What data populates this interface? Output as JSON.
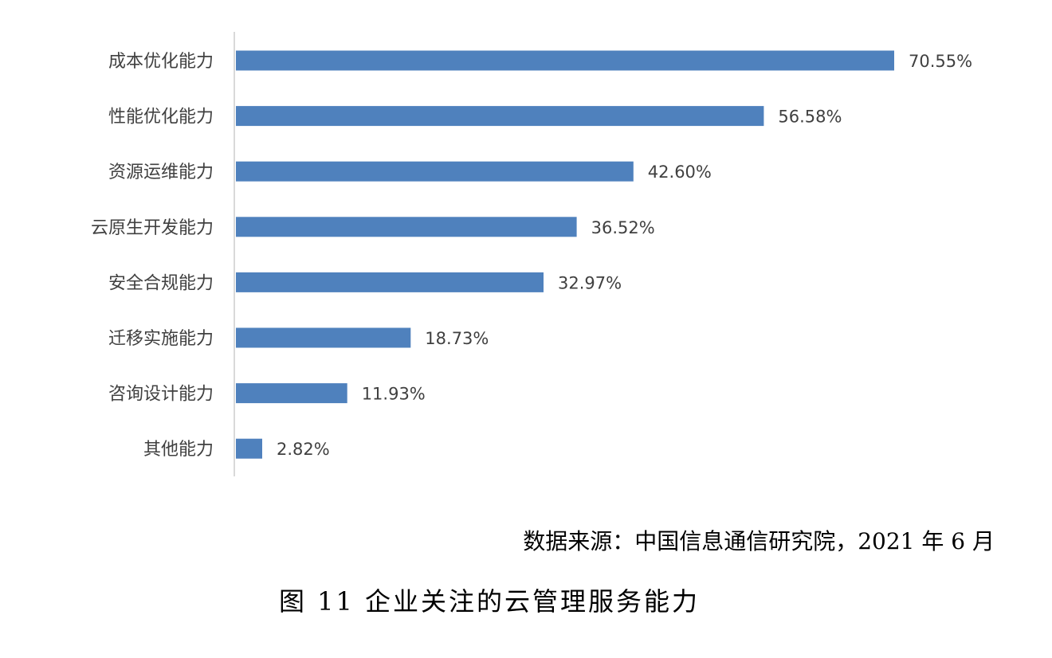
{
  "chart_data": {
    "type": "bar",
    "orientation": "horizontal",
    "categories": [
      "成本优化能力",
      "性能优化能力",
      "资源运维能力",
      "云原生开发能力",
      "安全合规能力",
      "迁移实施能力",
      "咨询设计能力",
      "其他能力"
    ],
    "values": [
      70.55,
      56.58,
      42.6,
      36.52,
      32.97,
      18.73,
      11.93,
      2.82
    ],
    "value_labels": [
      "70.55%",
      "56.58%",
      "42.60%",
      "36.52%",
      "32.97%",
      "18.73%",
      "11.93%",
      "2.82%"
    ],
    "unit": "%",
    "grid": false,
    "legend": "none",
    "bar_color": "#4F81BD",
    "axis_color": "#D9D9D9"
  },
  "source": "数据来源：中国信息通信研究院，2021 年 6 月",
  "caption": "图 11  企业关注的云管理服务能力"
}
